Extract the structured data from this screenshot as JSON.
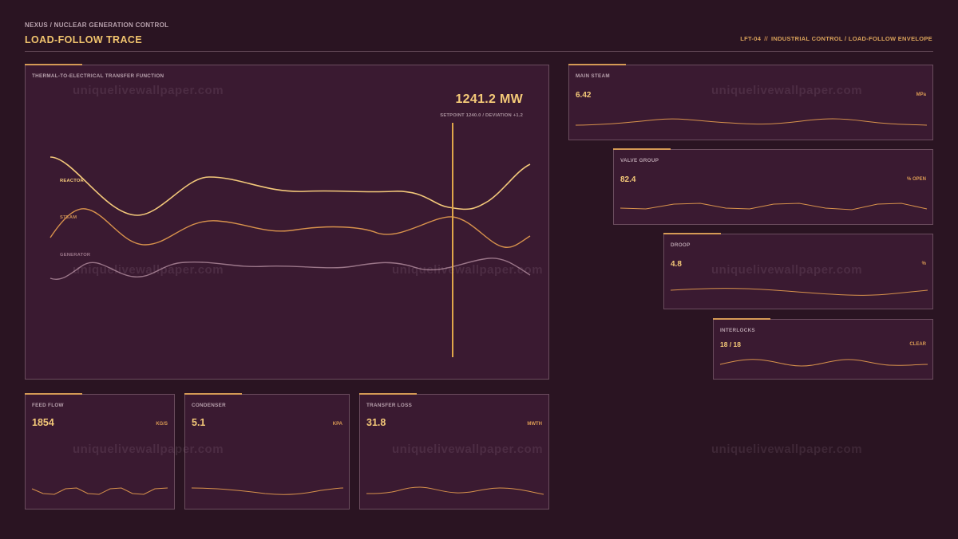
{
  "header": {
    "crumb": "NEXUS / NUCLEAR GENERATION CONTROL",
    "title": "LOAD-FOLLOW TRACE",
    "id": "LFT-04",
    "separator": "//",
    "context": "INDUSTRIAL CONTROL / LOAD-FOLLOW ENVELOPE"
  },
  "main": {
    "label": "THERMAL-TO-ELECTRICAL TRANSFER FUNCTION",
    "value": "1241.2 MW",
    "subtext": "SETPOINT 1240.0 / DEVIATION +1.2",
    "traces": [
      {
        "name": "REACTOR",
        "color": "#f3c87a"
      },
      {
        "name": "STEAM",
        "color": "#d8924c"
      },
      {
        "name": "GENERATOR",
        "color": "#9b7689"
      }
    ],
    "cursor_color": "#e0a64a"
  },
  "metrics": {
    "main_steam": {
      "label": "MAIN STEAM",
      "value": "6.42",
      "unit": "MPa"
    },
    "valve_group": {
      "label": "VALVE GROUP",
      "value": "82.4",
      "unit": "% OPEN"
    },
    "droop": {
      "label": "DROOP",
      "value": "4.8",
      "unit": "%"
    },
    "interlocks": {
      "label": "INTERLOCKS",
      "value": "18 / 18",
      "unit": "CLEAR"
    },
    "feed_flow": {
      "label": "FEED FLOW",
      "value": "1854",
      "unit": "KG/S"
    },
    "condenser": {
      "label": "CONDENSER",
      "value": "5.1",
      "unit": "KPA"
    },
    "transfer_loss": {
      "label": "TRANSFER LOSS",
      "value": "31.8",
      "unit": "MWTH"
    }
  },
  "watermark": "uniquelivewallpaper.com",
  "colors": {
    "background": "#2a1422",
    "panel": "#3a1a31",
    "accent": "#d49a55",
    "value": "#f3c878"
  }
}
